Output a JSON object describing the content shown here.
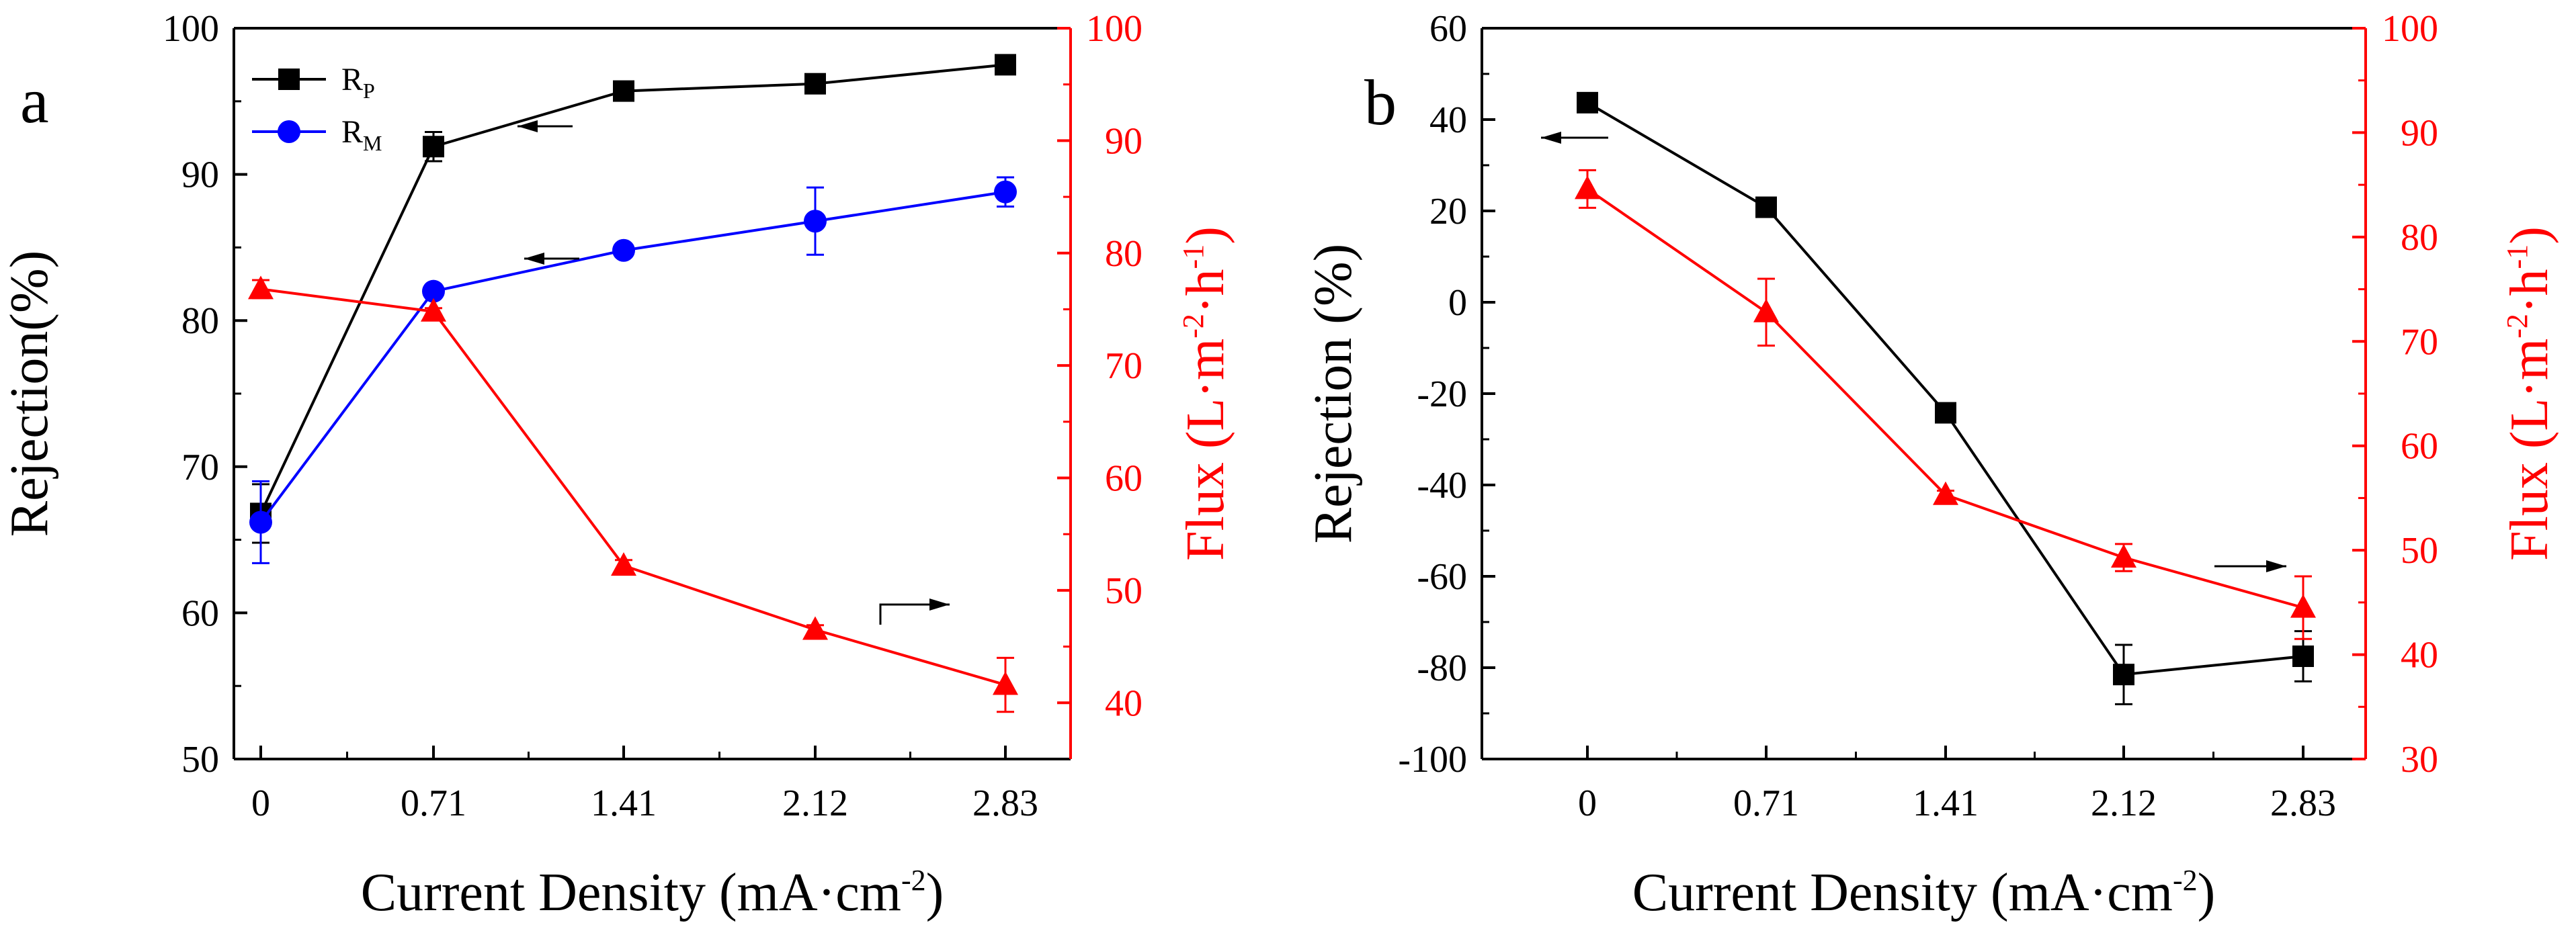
{
  "chart_data": [
    {
      "type": "line",
      "panel": "a",
      "x": [
        "0",
        "0.71",
        "1.41",
        "2.12",
        "2.83"
      ],
      "xlabel": "Current Density (mA·cm",
      "xlabel_sup": "-2",
      "xlabel_end": ")",
      "ylabel": "Rejection(%)",
      "ylim": [
        50,
        100
      ],
      "yticks": [
        50,
        60,
        70,
        80,
        90,
        100
      ],
      "y2label": "Flux (L·m",
      "y2label_sup1": "-2",
      "y2label_mid": "·h",
      "y2label_sup2": "-1",
      "y2label_end": ")",
      "y2lim": [
        35,
        100
      ],
      "y2ticks": [
        40,
        50,
        60,
        70,
        80,
        90,
        100
      ],
      "colors": {
        "rp": "#000000",
        "rm": "#0000ff",
        "flux": "#ff0000"
      },
      "series": [
        {
          "name": "R",
          "sub": "P",
          "axis": "left",
          "marker": "square",
          "color": "#000000",
          "values": [
            66.8,
            91.9,
            95.7,
            96.2,
            97.5
          ],
          "errors": [
            2.0,
            1.0,
            0.3,
            0.3,
            0.3
          ]
        },
        {
          "name": "R",
          "sub": "M",
          "axis": "left",
          "marker": "circle",
          "color": "#0000ff",
          "values": [
            66.2,
            82.0,
            84.8,
            86.8,
            88.8
          ],
          "errors": [
            2.8,
            0.2,
            0.3,
            2.3,
            1.0
          ]
        },
        {
          "name": "Flux",
          "axis": "right",
          "marker": "triangle",
          "color": "#ff0000",
          "values": [
            76.8,
            74.8,
            52.2,
            46.5,
            41.6
          ],
          "errors": [
            0.8,
            0.3,
            0.5,
            0.4,
            2.4
          ]
        }
      ],
      "legend": "top-left"
    },
    {
      "type": "line",
      "panel": "b",
      "x": [
        "0",
        "0.71",
        "1.41",
        "2.12",
        "2.83"
      ],
      "xlabel": "Current Density (mA·cm",
      "xlabel_sup": "-2",
      "xlabel_end": ")",
      "ylabel": "Rejection (%)",
      "ylim": [
        -100,
        60
      ],
      "yticks": [
        -100,
        -80,
        -60,
        -40,
        -20,
        0,
        20,
        40,
        60
      ],
      "y2label": "Flux (L·m",
      "y2label_sup1": "-2",
      "y2label_mid": "·h",
      "y2label_sup2": "-1",
      "y2label_end": ")",
      "y2lim": [
        30,
        100
      ],
      "y2ticks": [
        30,
        40,
        50,
        60,
        70,
        80,
        90,
        100
      ],
      "colors": {
        "rejection": "#000000",
        "flux": "#ff0000"
      },
      "series": [
        {
          "name": "Rejection",
          "axis": "left",
          "marker": "square",
          "color": "#000000",
          "values": [
            43.7,
            20.8,
            -24.2,
            -81.5,
            -77.5
          ],
          "errors": [
            0.8,
            1.5,
            0.8,
            6.5,
            5.5
          ]
        },
        {
          "name": "Flux",
          "axis": "right",
          "marker": "triangle",
          "color": "#ff0000",
          "values": [
            84.6,
            72.8,
            55.3,
            49.3,
            44.5
          ],
          "errors": [
            1.8,
            3.2,
            0.4,
            1.3,
            3.0
          ]
        }
      ]
    }
  ]
}
